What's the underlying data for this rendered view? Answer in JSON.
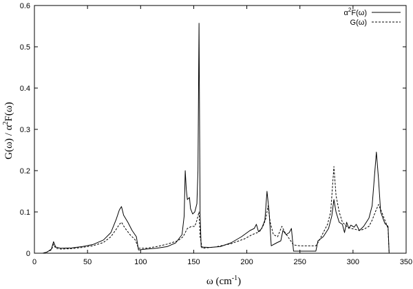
{
  "chart_data": {
    "type": "line",
    "xlabel": "ω (cm",
    "xlabel_sup": "-1",
    "xlabel_tail": ")",
    "ylabel_a": "G(ω)  /  α",
    "ylabel_sup": "2",
    "ylabel_b": "F(ω)",
    "xlim": [
      0,
      350
    ],
    "ylim": [
      0,
      0.6
    ],
    "x_ticks": [
      0,
      50,
      100,
      150,
      200,
      250,
      300,
      350
    ],
    "y_ticks": [
      0,
      0.1,
      0.2,
      0.3,
      0.4,
      0.5,
      0.6
    ],
    "x_tick_labels": [
      "0",
      "50",
      "100",
      "150",
      "200",
      "250",
      "300",
      "350"
    ],
    "y_tick_labels": [
      "0",
      "0.1",
      "0.2",
      "0.3",
      "0.4",
      "0.5",
      "0.6"
    ],
    "grid": false,
    "legend_position": "top-right",
    "series": [
      {
        "name_a": "α",
        "name_sup": "2",
        "name_b": "F(ω)",
        "style": "solid",
        "color": "#000000",
        "points": [
          [
            8,
            0
          ],
          [
            12,
            0.003
          ],
          [
            16,
            0.01
          ],
          [
            18,
            0.028
          ],
          [
            20,
            0.015
          ],
          [
            25,
            0.012
          ],
          [
            35,
            0.013
          ],
          [
            45,
            0.016
          ],
          [
            55,
            0.021
          ],
          [
            65,
            0.032
          ],
          [
            72,
            0.05
          ],
          [
            77,
            0.082
          ],
          [
            80,
            0.105
          ],
          [
            82,
            0.113
          ],
          [
            84,
            0.092
          ],
          [
            88,
            0.075
          ],
          [
            92,
            0.055
          ],
          [
            96,
            0.04
          ],
          [
            98,
            0.008
          ],
          [
            105,
            0.01
          ],
          [
            115,
            0.012
          ],
          [
            125,
            0.016
          ],
          [
            133,
            0.025
          ],
          [
            139,
            0.045
          ],
          [
            141,
            0.09
          ],
          [
            142,
            0.2
          ],
          [
            143,
            0.155
          ],
          [
            144,
            0.13
          ],
          [
            146,
            0.135
          ],
          [
            147,
            0.108
          ],
          [
            149,
            0.095
          ],
          [
            151,
            0.1
          ],
          [
            153,
            0.12
          ],
          [
            154,
            0.2
          ],
          [
            155,
            0.557
          ],
          [
            156,
            0.1
          ],
          [
            157,
            0.015
          ],
          [
            165,
            0.014
          ],
          [
            175,
            0.016
          ],
          [
            185,
            0.025
          ],
          [
            195,
            0.04
          ],
          [
            203,
            0.055
          ],
          [
            207,
            0.06
          ],
          [
            209,
            0.07
          ],
          [
            211,
            0.052
          ],
          [
            214,
            0.06
          ],
          [
            217,
            0.08
          ],
          [
            219,
            0.15
          ],
          [
            221,
            0.1
          ],
          [
            223,
            0.018
          ],
          [
            228,
            0.025
          ],
          [
            232,
            0.03
          ],
          [
            234,
            0.055
          ],
          [
            237,
            0.045
          ],
          [
            240,
            0.05
          ],
          [
            242,
            0.06
          ],
          [
            244,
            0.005
          ],
          [
            255,
            0.005
          ],
          [
            265,
            0.005
          ],
          [
            267,
            0.03
          ],
          [
            272,
            0.04
          ],
          [
            277,
            0.06
          ],
          [
            280,
            0.09
          ],
          [
            282,
            0.13
          ],
          [
            284,
            0.1
          ],
          [
            287,
            0.075
          ],
          [
            290,
            0.07
          ],
          [
            292,
            0.05
          ],
          [
            294,
            0.075
          ],
          [
            296,
            0.06
          ],
          [
            298,
            0.068
          ],
          [
            301,
            0.063
          ],
          [
            303,
            0.07
          ],
          [
            306,
            0.055
          ],
          [
            310,
            0.065
          ],
          [
            315,
            0.085
          ],
          [
            318,
            0.115
          ],
          [
            320,
            0.18
          ],
          [
            322,
            0.245
          ],
          [
            324,
            0.18
          ],
          [
            326,
            0.1
          ],
          [
            330,
            0.072
          ],
          [
            333,
            0.065
          ],
          [
            334,
            0
          ]
        ]
      },
      {
        "name_a": "G(ω)",
        "name_sup": "",
        "name_b": "",
        "style": "dashed",
        "color": "#000000",
        "points": [
          [
            8,
            0
          ],
          [
            12,
            0.003
          ],
          [
            16,
            0.008
          ],
          [
            18,
            0.022
          ],
          [
            20,
            0.012
          ],
          [
            25,
            0.01
          ],
          [
            35,
            0.011
          ],
          [
            45,
            0.014
          ],
          [
            55,
            0.018
          ],
          [
            65,
            0.026
          ],
          [
            72,
            0.04
          ],
          [
            77,
            0.058
          ],
          [
            80,
            0.07
          ],
          [
            82,
            0.075
          ],
          [
            85,
            0.062
          ],
          [
            90,
            0.045
          ],
          [
            95,
            0.032
          ],
          [
            98,
            0.012
          ],
          [
            105,
            0.012
          ],
          [
            115,
            0.016
          ],
          [
            125,
            0.022
          ],
          [
            135,
            0.03
          ],
          [
            140,
            0.04
          ],
          [
            142,
            0.05
          ],
          [
            144,
            0.06
          ],
          [
            148,
            0.065
          ],
          [
            151,
            0.065
          ],
          [
            153,
            0.08
          ],
          [
            155,
            0.1
          ],
          [
            156,
            0.04
          ],
          [
            158,
            0.012
          ],
          [
            170,
            0.015
          ],
          [
            185,
            0.023
          ],
          [
            198,
            0.035
          ],
          [
            205,
            0.045
          ],
          [
            210,
            0.05
          ],
          [
            213,
            0.055
          ],
          [
            216,
            0.07
          ],
          [
            218,
            0.085
          ],
          [
            220,
            0.115
          ],
          [
            222,
            0.075
          ],
          [
            225,
            0.045
          ],
          [
            229,
            0.04
          ],
          [
            233,
            0.065
          ],
          [
            236,
            0.05
          ],
          [
            240,
            0.035
          ],
          [
            244,
            0.02
          ],
          [
            250,
            0.018
          ],
          [
            258,
            0.018
          ],
          [
            265,
            0.018
          ],
          [
            268,
            0.03
          ],
          [
            272,
            0.05
          ],
          [
            276,
            0.07
          ],
          [
            279,
            0.1
          ],
          [
            282,
            0.21
          ],
          [
            284,
            0.14
          ],
          [
            287,
            0.1
          ],
          [
            290,
            0.075
          ],
          [
            294,
            0.065
          ],
          [
            298,
            0.06
          ],
          [
            302,
            0.058
          ],
          [
            306,
            0.055
          ],
          [
            310,
            0.058
          ],
          [
            315,
            0.065
          ],
          [
            318,
            0.08
          ],
          [
            321,
            0.1
          ],
          [
            324,
            0.118
          ],
          [
            327,
            0.1
          ],
          [
            330,
            0.08
          ],
          [
            333,
            0.06
          ],
          [
            334,
            0
          ]
        ]
      }
    ]
  }
}
